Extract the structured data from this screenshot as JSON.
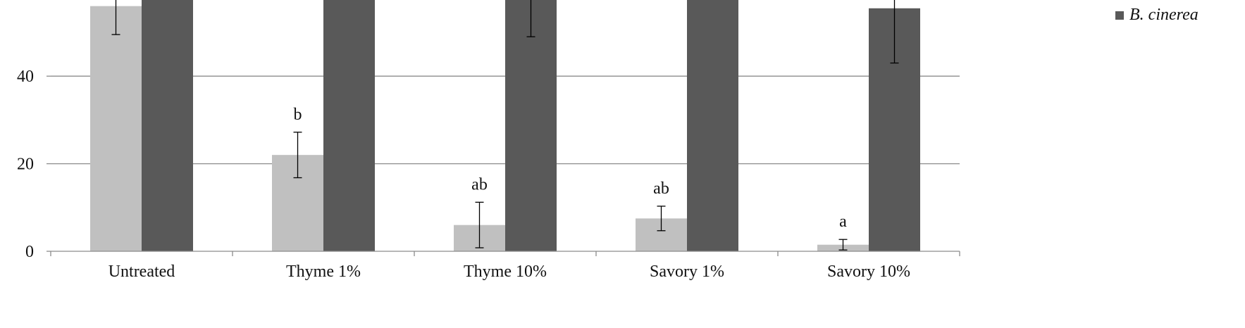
{
  "chart_data": {
    "type": "bar",
    "categories": [
      "Untreated",
      "Thyme 1%",
      "Thyme 10%",
      "Savory 1%",
      "Savory 10%"
    ],
    "yticks": [
      "0",
      "20",
      "40"
    ],
    "ylim": [
      0,
      58
    ],
    "grid": true,
    "legend_position": "top-right",
    "series": [
      {
        "name": "",
        "color": "#c0c0c0",
        "values": [
          56,
          22,
          6,
          7.5,
          1.5
        ],
        "errors": [
          6.5,
          5.2,
          5.2,
          2.8,
          1.2
        ],
        "significance": [
          "",
          "b",
          "ab",
          "ab",
          "a"
        ]
      },
      {
        "name": "B. cinerea",
        "color": "#595959",
        "values": [
          58,
          58,
          58,
          58,
          55.5
        ],
        "errors": [
          0,
          0,
          9,
          0,
          12.5
        ]
      }
    ]
  }
}
